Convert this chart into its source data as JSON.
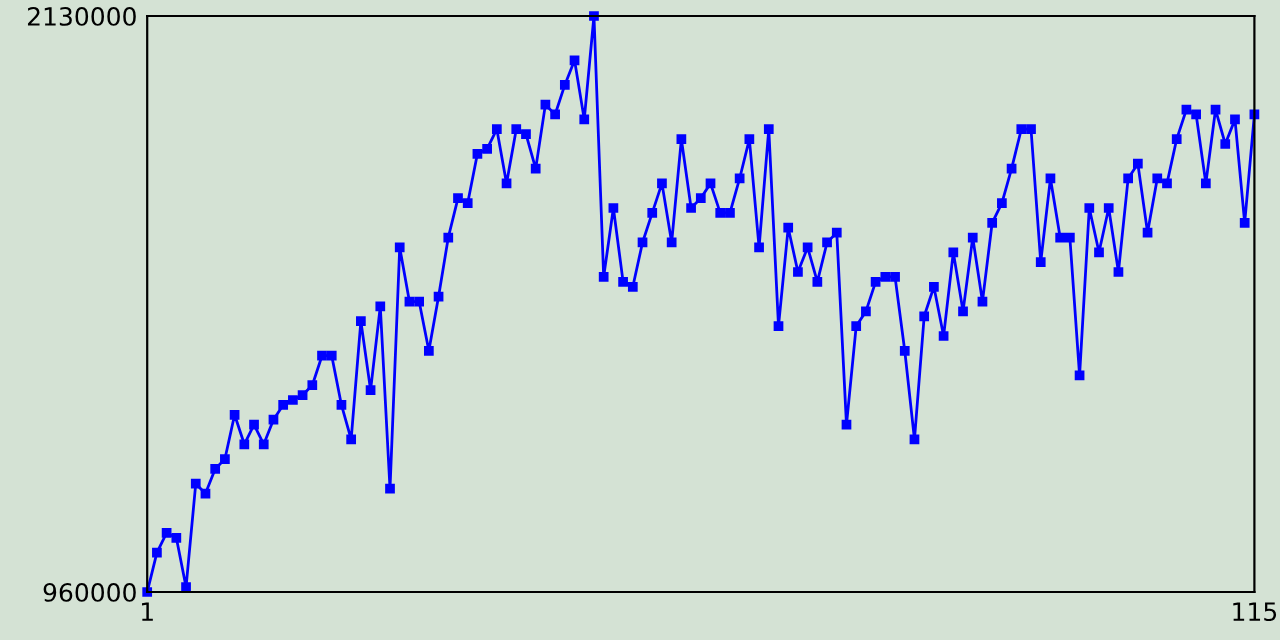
{
  "chart_data": {
    "type": "line",
    "x": [
      1,
      2,
      3,
      4,
      5,
      6,
      7,
      8,
      9,
      10,
      11,
      12,
      13,
      14,
      15,
      16,
      17,
      18,
      19,
      20,
      21,
      22,
      23,
      24,
      25,
      26,
      27,
      28,
      29,
      30,
      31,
      32,
      33,
      34,
      35,
      36,
      37,
      38,
      39,
      40,
      41,
      42,
      43,
      44,
      45,
      46,
      47,
      48,
      49,
      50,
      51,
      52,
      53,
      54,
      55,
      56,
      57,
      58,
      59,
      60,
      61,
      62,
      63,
      64,
      65,
      66,
      67,
      68,
      69,
      70,
      71,
      72,
      73,
      74,
      75,
      76,
      77,
      78,
      79,
      80,
      81,
      82,
      83,
      84,
      85,
      86,
      87,
      88,
      89,
      90,
      91,
      92,
      93,
      94,
      95,
      96,
      97,
      98,
      99,
      100,
      101,
      102,
      103,
      104,
      105,
      106,
      107,
      108,
      109,
      110,
      111,
      112,
      113,
      114,
      115
    ],
    "series": [
      {
        "color": "#0000ff",
        "values": [
          960000,
          1040000,
          1080000,
          1070000,
          970000,
          1180000,
          1160000,
          1210000,
          1230000,
          1320000,
          1260000,
          1300000,
          1260000,
          1310000,
          1340000,
          1350000,
          1360000,
          1380000,
          1440000,
          1440000,
          1340000,
          1270000,
          1510000,
          1370000,
          1540000,
          1170000,
          1660000,
          1550000,
          1550000,
          1450000,
          1560000,
          1680000,
          1760000,
          1750000,
          1850000,
          1860000,
          1900000,
          1790000,
          1900000,
          1890000,
          1820000,
          1950000,
          1930000,
          1990000,
          2040000,
          1920000,
          2130000,
          1600000,
          1740000,
          1590000,
          1580000,
          1670000,
          1730000,
          1790000,
          1670000,
          1880000,
          1740000,
          1760000,
          1790000,
          1730000,
          1730000,
          1800000,
          1880000,
          1660000,
          1900000,
          1500000,
          1700000,
          1610000,
          1660000,
          1590000,
          1670000,
          1690000,
          1300000,
          1500000,
          1530000,
          1590000,
          1600000,
          1600000,
          1450000,
          1270000,
          1520000,
          1580000,
          1480000,
          1650000,
          1530000,
          1680000,
          1550000,
          1710000,
          1750000,
          1820000,
          1900000,
          1900000,
          1630000,
          1800000,
          1680000,
          1680000,
          1400000,
          1740000,
          1650000,
          1740000,
          1610000,
          1800000,
          1830000,
          1690000,
          1800000,
          1790000,
          1880000,
          1940000,
          1930000,
          1790000,
          1940000,
          1870000,
          1920000,
          1710000,
          1930000
        ]
      }
    ],
    "xlim": [
      1,
      115
    ],
    "xticks": [
      1,
      115
    ],
    "ylim": [
      960000,
      2130000
    ],
    "yticks": [
      960000,
      2130000
    ],
    "marker": "square",
    "line_style": "solid",
    "grid": false,
    "legend": false
  }
}
